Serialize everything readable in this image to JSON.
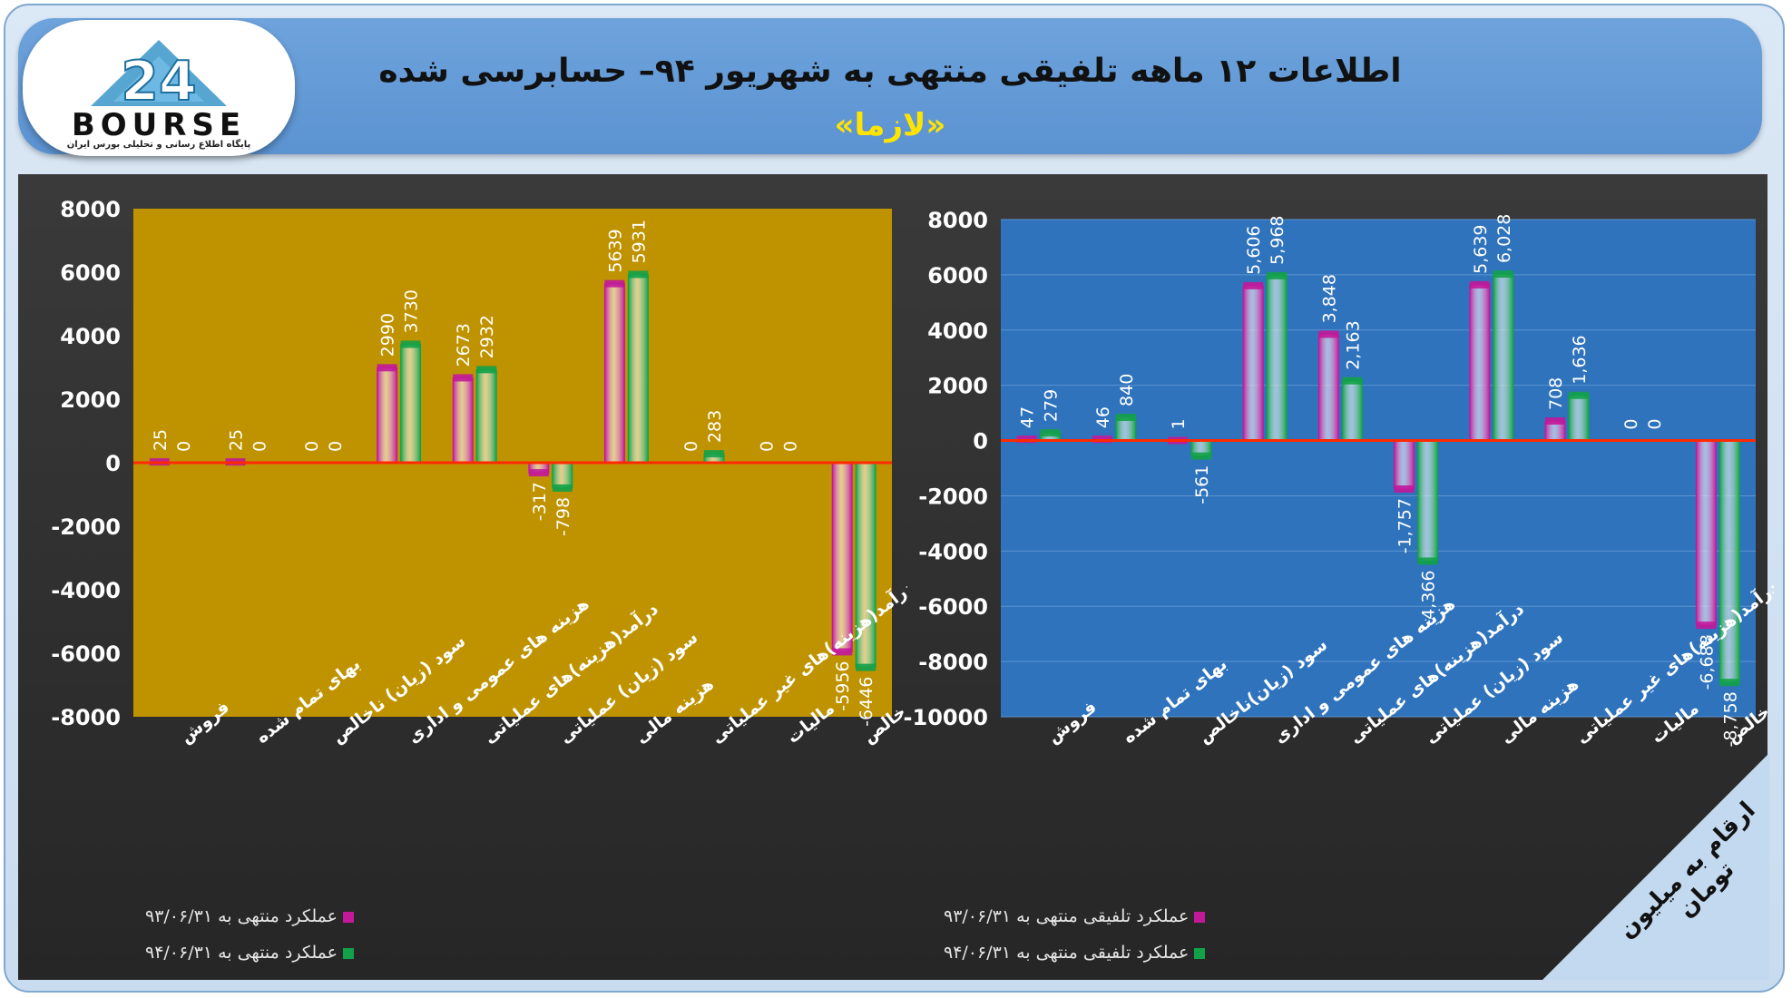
{
  "header": {
    "title": "اطلاعات ۱۲ ماهه تلفیقی منتهی به شهریور ۹۴– حسابرسی شده",
    "subtitle": "«لازما»"
  },
  "logo": {
    "mark": "24",
    "name": "BOURSE",
    "tagline": "پایگاه اطلاع رسانی و تحلیلی بورس ایران"
  },
  "unit_note": "ارقام به میلیون تومان",
  "colors": {
    "series_a": "#c2189a",
    "series_b": "#12a148",
    "left_plot_bg": "#bf9300",
    "right_plot_bg": "#2f73bd",
    "zero_line": "#ff2a00"
  },
  "chart_data": [
    {
      "type": "bar",
      "panel": "left",
      "categories": [
        "فروش",
        "بهای تمام شده",
        "سود (زیان) ناخالص",
        "هزینه های عمومی و اداری",
        "درآمد(هزینه)های عملیاتی",
        "سود (زیان) عملیاتی",
        "هزینه مالی",
        "درآمد(هزینه)های غیر عملیاتی",
        "مالیات",
        "سود خالص"
      ],
      "series": [
        {
          "name": "عملکرد منتهی به ۹۳/۰۶/۳۱",
          "values": [
            25,
            25,
            0,
            2990,
            2673,
            -317,
            5639,
            0,
            0,
            -5956
          ],
          "labels": [
            "25",
            "25",
            "0",
            "2990",
            "2673",
            "-317",
            "5639",
            "0",
            "0",
            "-5956"
          ]
        },
        {
          "name": "عملکرد منتهی به ۹۴/۰۶/۳۱",
          "values": [
            0,
            0,
            0,
            3730,
            2932,
            -798,
            5931,
            283,
            0,
            -6446
          ],
          "labels": [
            "0",
            "0",
            "0",
            "3730",
            "2932",
            "-798",
            "5931",
            "283",
            "0",
            "-6446"
          ]
        }
      ],
      "ylim": [
        -8000,
        8000
      ],
      "yticks": [
        8000,
        6000,
        4000,
        2000,
        0,
        -2000,
        -4000,
        -6000,
        -8000
      ],
      "ytick_labels": [
        "8000",
        "6000",
        "4000",
        "2000",
        "0",
        "-2000",
        "-4000",
        "-6000",
        "-8000"
      ],
      "grid": false,
      "legend": "bottom-left"
    },
    {
      "type": "bar",
      "panel": "right",
      "categories": [
        "فروش",
        "بهای تمام شده",
        "سود (زیان)ناخالص",
        "هزینه های عمومی و اداری",
        "درآمد(هزینه)های عملیاتی",
        "سود (زیان) عملیاتی",
        "هزینه مالی",
        "درآمد(هزینه)های غیر عملیاتی",
        "مالیات",
        "سود خالص"
      ],
      "series": [
        {
          "name": "عملکرد تلفیقی منتهی به ۹۳/۰۶/۳۱",
          "values": [
            47,
            46,
            1,
            5606,
            3848,
            -1757,
            5639,
            708,
            0,
            -6688
          ],
          "labels": [
            "47",
            "46",
            "1",
            "5,606",
            "3,848",
            "-1,757",
            "5,639",
            "708",
            "0",
            "-6,688"
          ]
        },
        {
          "name": "عملکرد تلفیقی منتهی به ۹۴/۰۶/۳۱",
          "values": [
            279,
            840,
            -561,
            5968,
            2163,
            -4366,
            6028,
            1636,
            0,
            -8758
          ],
          "labels": [
            "279",
            "840",
            "-561",
            "5,968",
            "2,163",
            "-4,366",
            "6,028",
            "1,636",
            "0",
            "-8,758"
          ]
        }
      ],
      "ylim": [
        -10000,
        8000
      ],
      "yticks": [
        8000,
        6000,
        4000,
        2000,
        0,
        -2000,
        -4000,
        -6000,
        -8000,
        -10000
      ],
      "ytick_labels": [
        "8000",
        "6000",
        "4000",
        "2000",
        "0",
        "-2000",
        "-4000",
        "-6000",
        "-8000",
        "-10000"
      ],
      "grid": true,
      "legend": "bottom-left"
    }
  ]
}
